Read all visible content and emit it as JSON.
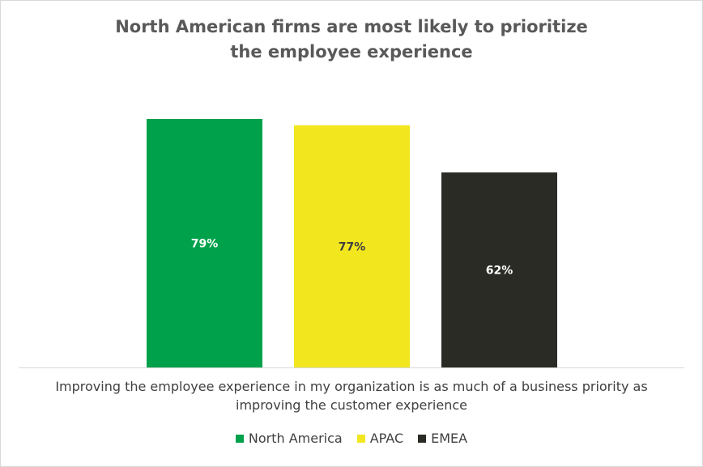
{
  "chart_data": {
    "type": "bar",
    "title": "North American firms are most likely to prioritize the employee experience",
    "title_lines": [
      "North American firms are most likely to prioritize",
      "the employee experience"
    ],
    "categories": [
      "Improving the employee experience in my organization is as much of a business priority as improving the customer experience"
    ],
    "series": [
      {
        "name": "North America",
        "values": [
          79
        ],
        "label": "79%",
        "color": "#00a14b",
        "label_color": "#ffffff"
      },
      {
        "name": "APAC",
        "values": [
          77
        ],
        "label": "77%",
        "color": "#f2e61f",
        "label_color": "#404040"
      },
      {
        "name": "EMEA",
        "values": [
          62
        ],
        "label": "62%",
        "color": "#2b2b26",
        "label_color": "#ffffff"
      }
    ],
    "ylim": [
      0,
      80
    ],
    "grid": false,
    "legend_position": "bottom",
    "xlabel": "",
    "ylabel": ""
  }
}
